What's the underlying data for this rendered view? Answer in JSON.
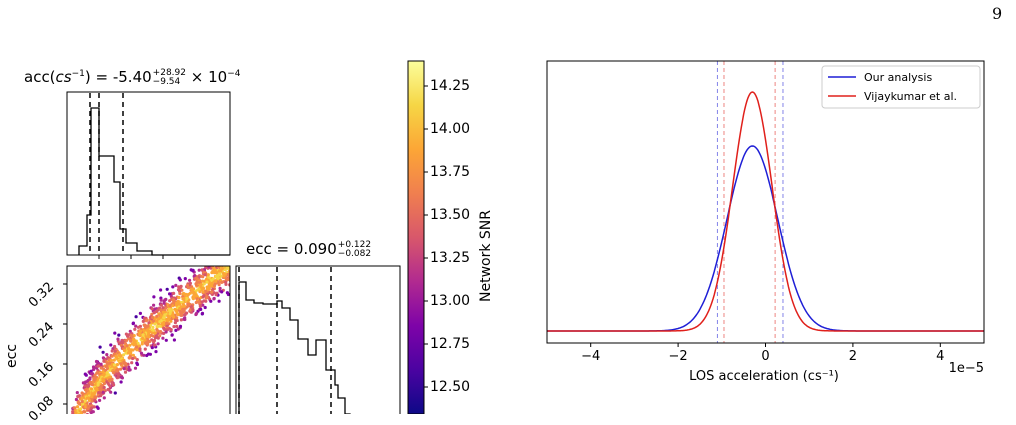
{
  "page_number": "9",
  "corner": {
    "acc_title": {
      "prefix": "acc(",
      "var": "cs",
      "var_exp": "−1",
      "mid": ") = -5.40",
      "upper": "+28.92",
      "lower": "−9.54",
      "suffix": " × 10",
      "suffix_exp": "−4"
    },
    "ecc_title": {
      "prefix": "ecc = 0.090",
      "upper": "+0.122",
      "lower": "−0.082"
    },
    "ecc_ylabel": "ecc",
    "ecc_yticks": [
      "0.32",
      "0.24",
      "0.16",
      "0.08"
    ],
    "colorbar": {
      "label": "Network SNR",
      "ticks": [
        "14.25",
        "14.00",
        "13.75",
        "13.50",
        "13.25",
        "13.00",
        "12.75",
        "12.50"
      ],
      "colors": [
        "#fcfe9c",
        "#f6d645",
        "#fca636",
        "#f07f4f",
        "#d8576b",
        "#b12a90",
        "#7e03a8",
        "#4b03a1",
        "#0d0887"
      ]
    }
  },
  "chart_data": {
    "type": "line",
    "xlabel": "LOS acceleration (cs⁻¹)",
    "x_scale_note": "1e−5",
    "xlim": [
      -5,
      5
    ],
    "xticks": [
      "−4",
      "−2",
      "0",
      "2",
      "4"
    ],
    "legend_position": "top-right",
    "series": [
      {
        "name": "Our analysis",
        "color": "#1f1fd6",
        "mean": -0.3,
        "sigma": 0.58,
        "peak": 0.72,
        "ci": [
          -1.1,
          0.4
        ]
      },
      {
        "name": "Vijaykumar et al.",
        "color": "#e0201b",
        "mean": -0.3,
        "sigma": 0.45,
        "peak": 0.93,
        "ci": [
          -0.95,
          0.22
        ]
      }
    ]
  }
}
